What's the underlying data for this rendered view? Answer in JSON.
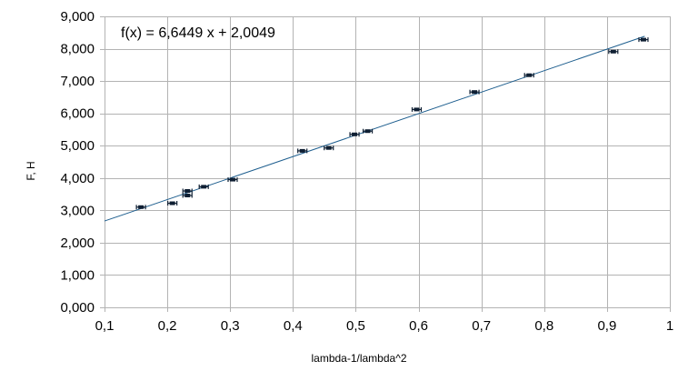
{
  "chart_data": {
    "type": "scatter",
    "title": "",
    "xlabel": "lambda-1/lambda^2",
    "ylabel": "F, H",
    "xlim": [
      0.1,
      1.0
    ],
    "ylim": [
      0.0,
      9.0
    ],
    "x_ticks": [
      "0,1",
      "0,2",
      "0,3",
      "0,4",
      "0,5",
      "0,6",
      "0,7",
      "0,8",
      "0,9",
      "1"
    ],
    "y_ticks": [
      "0,000",
      "1,000",
      "2,000",
      "3,000",
      "4,000",
      "5,000",
      "6,000",
      "7,000",
      "8,000",
      "9,000"
    ],
    "grid": true,
    "legend": "none",
    "series": [
      {
        "marker_color": "#0f1f33",
        "error_bars": "horizontal",
        "points": [
          {
            "x": 0.158,
            "y": 3.1
          },
          {
            "x": 0.208,
            "y": 3.22
          },
          {
            "x": 0.232,
            "y": 3.6
          },
          {
            "x": 0.232,
            "y": 3.46
          },
          {
            "x": 0.258,
            "y": 3.73
          },
          {
            "x": 0.304,
            "y": 3.95
          },
          {
            "x": 0.415,
            "y": 4.84
          },
          {
            "x": 0.457,
            "y": 4.93
          },
          {
            "x": 0.498,
            "y": 5.35
          },
          {
            "x": 0.519,
            "y": 5.45
          },
          {
            "x": 0.597,
            "y": 6.12
          },
          {
            "x": 0.689,
            "y": 6.66
          },
          {
            "x": 0.776,
            "y": 7.18
          },
          {
            "x": 0.91,
            "y": 7.91
          },
          {
            "x": 0.958,
            "y": 8.28
          }
        ]
      }
    ],
    "trendline": {
      "type": "linear",
      "slope": 6.6449,
      "intercept": 2.0049,
      "color": "#1f5f8f",
      "equation_label": "f(x) = 6,6449 x + 2,0049"
    }
  }
}
